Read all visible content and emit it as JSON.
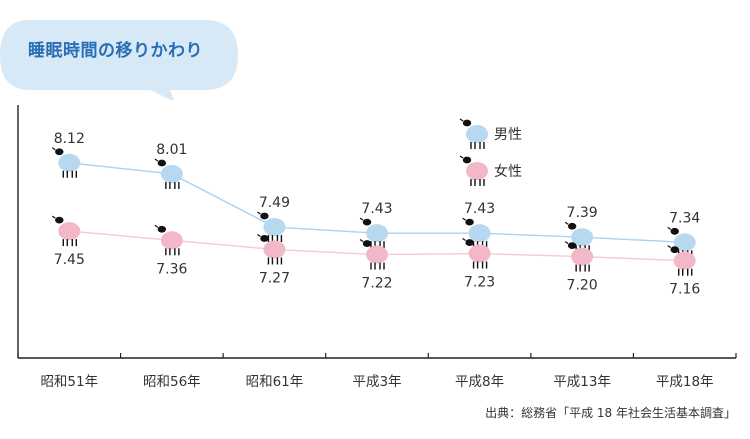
{
  "title": "睡眠時間の移りかわり",
  "source": "出典：総務省「平成 18 年社会生活基本調査」",
  "colors": {
    "male": "#b8d8f0",
    "male_line": "#a9d3ee",
    "female": "#f2b8c8",
    "female_line": "#f6c9d3",
    "bubble": "#d7e9f7",
    "title": "#2a6db5",
    "axis": "#222222"
  },
  "chart_data": {
    "type": "line",
    "categories": [
      "昭和51年",
      "昭和56年",
      "昭和61年",
      "平成3年",
      "平成8年",
      "平成13年",
      "平成18年"
    ],
    "series": [
      {
        "name": "男性",
        "values": [
          8.12,
          8.01,
          7.49,
          7.43,
          7.43,
          7.39,
          7.34
        ],
        "labels": [
          "8.12",
          "8.01",
          "7.49",
          "7.43",
          "7.43",
          "7.39",
          "7.34"
        ]
      },
      {
        "name": "女性",
        "values": [
          7.45,
          7.36,
          7.27,
          7.22,
          7.23,
          7.2,
          7.16
        ],
        "labels": [
          "7.45",
          "7.36",
          "7.27",
          "7.22",
          "7.23",
          "7.20",
          "7.16"
        ]
      }
    ],
    "legend": "top-center",
    "grid": false
  }
}
